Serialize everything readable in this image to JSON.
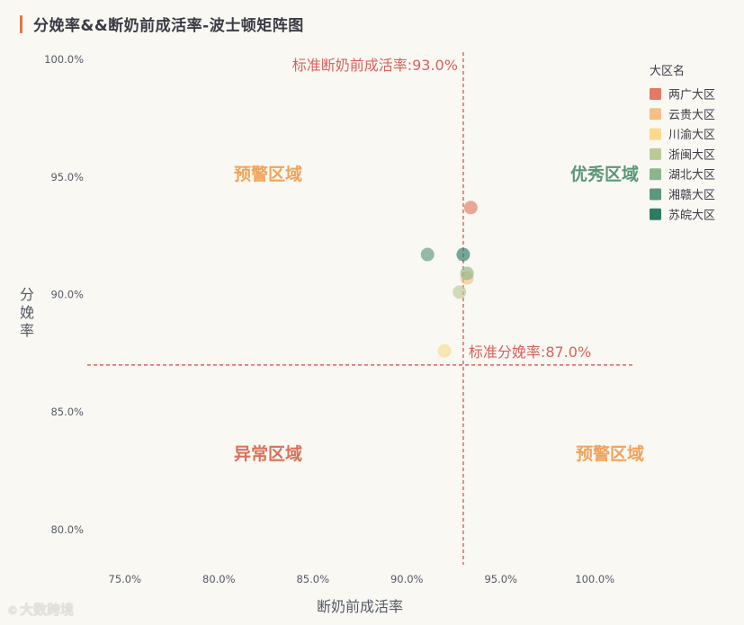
{
  "title": "分娩率&&断奶前成活率-波士顿矩阵图",
  "watermark": "大数跨境",
  "colors": {
    "background": "#faf8f3",
    "title_accent": "#e0744f",
    "reference_line": "#d9615c",
    "quadrant_good": "#5a9778",
    "quadrant_warning": "#f0a35a",
    "quadrant_abnormal": "#d9705a"
  },
  "chart_data": {
    "type": "scatter",
    "title": "分娩率&&断奶前成活率-波士顿矩阵图",
    "xlabel": "断奶前成活率",
    "ylabel": "分娩率",
    "xlim": [
      0.73,
      1.02
    ],
    "ylim": [
      0.785,
      1.01
    ],
    "x_ticks": [
      0.75,
      0.8,
      0.85,
      0.9,
      0.95,
      1.0
    ],
    "y_ticks": [
      0.8,
      0.85,
      0.9,
      0.95,
      1.0
    ],
    "x_tick_labels": [
      "75.0%",
      "80.0%",
      "85.0%",
      "90.0%",
      "95.0%",
      "100.0%"
    ],
    "y_tick_labels": [
      "80.0%",
      "85.0%",
      "90.0%",
      "95.0%",
      "100.0%"
    ],
    "grid": false,
    "legend_title": "大区名",
    "legend_position": "top-right",
    "reference_lines": {
      "x": {
        "value": 0.93,
        "label": "标准断奶前成活率:93.0%"
      },
      "y": {
        "value": 0.87,
        "label": "标准分娩率:87.0%"
      }
    },
    "quadrants": {
      "top_left": "预警区域",
      "top_right": "优秀区域",
      "bottom_left": "异常区域",
      "bottom_right": "预警区域"
    },
    "series": [
      {
        "name": "两广大区",
        "color": "#e07a62",
        "points": [
          [
            0.934,
            0.937
          ]
        ]
      },
      {
        "name": "云贵大区",
        "color": "#f6bf87",
        "points": [
          [
            0.932,
            0.907
          ]
        ]
      },
      {
        "name": "川渝大区",
        "color": "#fbd98f",
        "points": [
          [
            0.92,
            0.876
          ]
        ]
      },
      {
        "name": "浙闽大区",
        "color": "#bac996",
        "points": [
          [
            0.928,
            0.901
          ]
        ]
      },
      {
        "name": "湖北大区",
        "color": "#8db589",
        "points": [
          [
            0.932,
            0.909
          ]
        ]
      },
      {
        "name": "湘赣大区",
        "color": "#5d9780",
        "points": [
          [
            0.911,
            0.917
          ]
        ]
      },
      {
        "name": "苏皖大区",
        "color": "#2f7a65",
        "points": [
          [
            0.93,
            0.917
          ]
        ]
      }
    ]
  }
}
